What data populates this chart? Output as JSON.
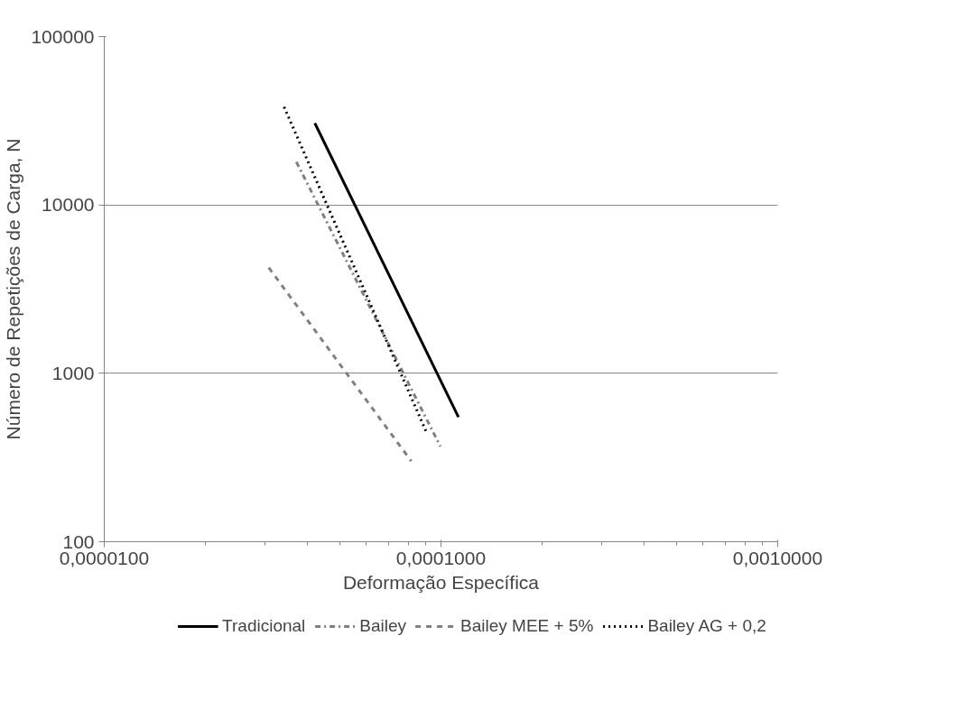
{
  "chart_data": {
    "type": "line",
    "xlabel": "Deformação Específica",
    "ylabel": "Número de Repetições de Carga, N",
    "log": "xy",
    "grid": "y",
    "legend": "bottom",
    "marker": "none",
    "xlim": [
      1e-05,
      0.001
    ],
    "xticks": [
      {
        "value": 1e-05,
        "label": "0,0000100"
      },
      {
        "value": 0.0001,
        "label": "0,0001000"
      },
      {
        "value": 0.001,
        "label": "0,0010000"
      }
    ],
    "ylim": [
      100,
      100000
    ],
    "yticks": [
      100,
      1000,
      10000,
      100000
    ],
    "series": [
      {
        "name": "Tradicional",
        "color": "#000000",
        "line_style": "solid",
        "x": [
          4.22e-05,
          0.0001127
        ],
        "values": [
          30600,
          550
        ]
      },
      {
        "name": "Bailey",
        "color": "#808080",
        "line_style": "dashdot",
        "x": [
          3.72e-05,
          9.96e-05
        ],
        "values": [
          18000,
          368
        ]
      },
      {
        "name": "Bailey MEE + 5%",
        "color": "#808080",
        "line_style": "dashed",
        "x": [
          3.08e-05,
          8.16e-05
        ],
        "values": [
          4240,
          301
        ]
      },
      {
        "name": "Bailey AG + 0,2",
        "color": "#000000",
        "line_style": "dotted",
        "x": [
          3.42e-05,
          9.04e-05
        ],
        "values": [
          38200,
          450
        ]
      }
    ]
  }
}
